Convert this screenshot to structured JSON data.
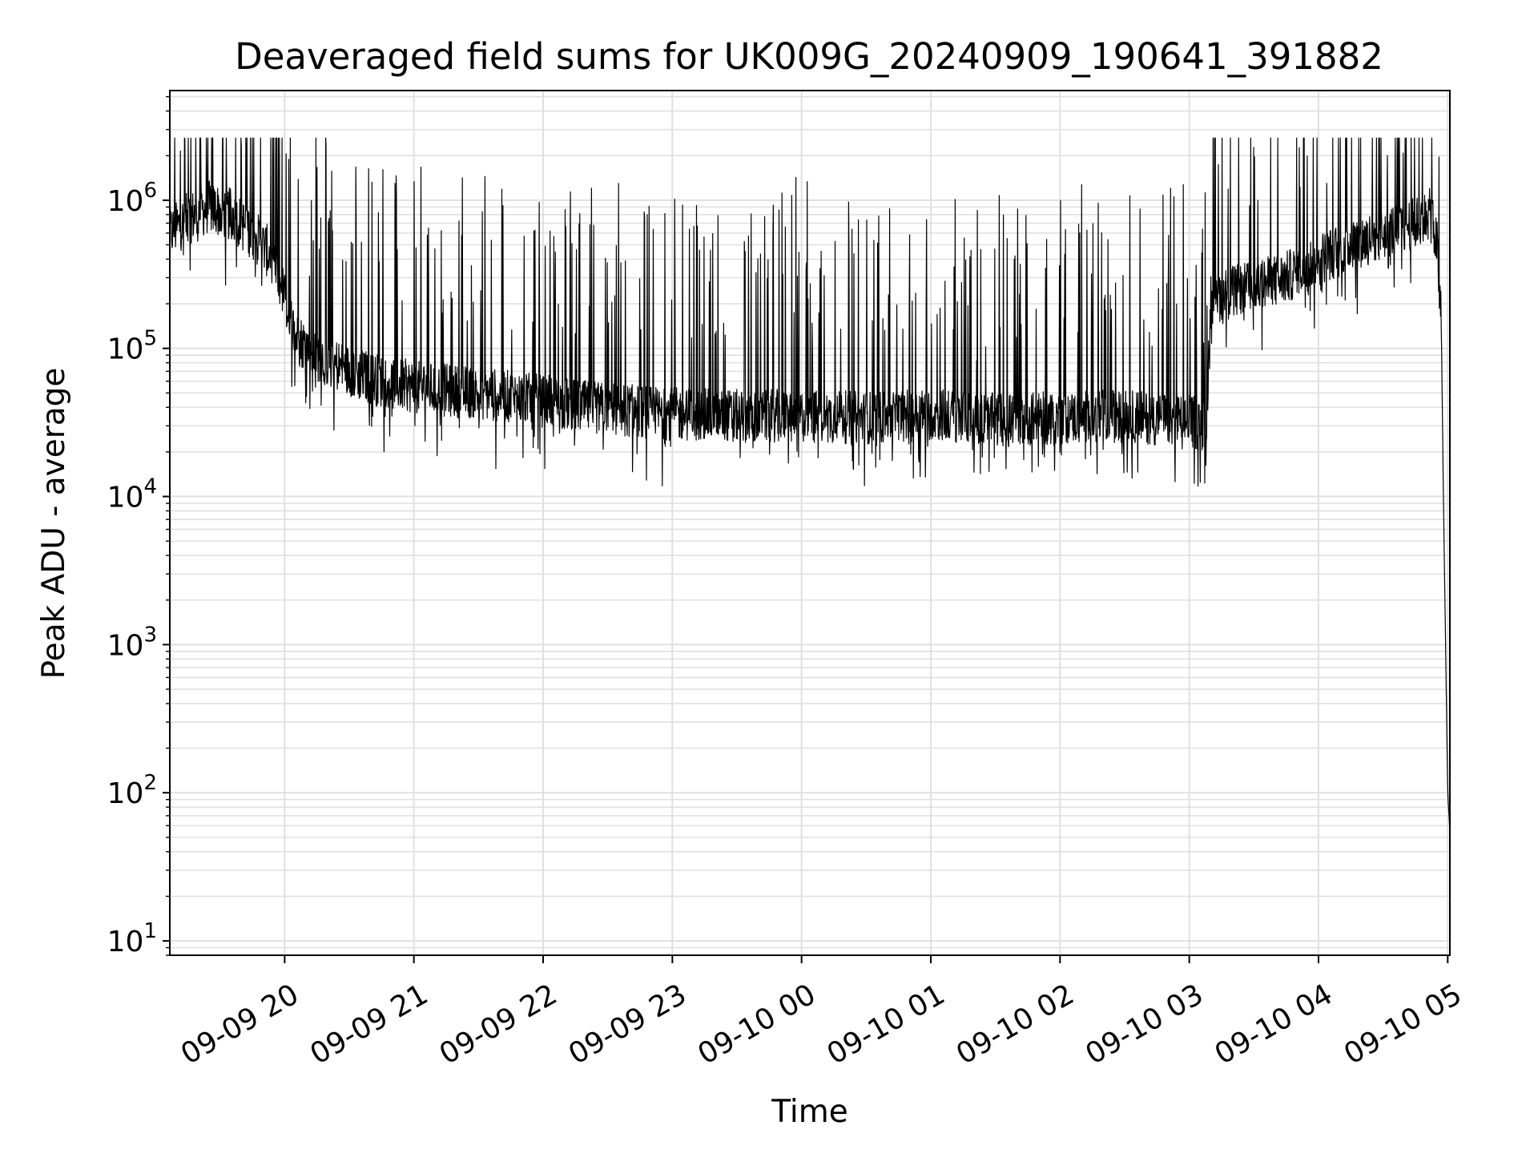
{
  "chart_data": {
    "type": "line",
    "title": "Deaveraged field sums for UK009G_20240909_190641_391882",
    "xlabel": "Time",
    "ylabel": "Peak ADU - average",
    "yscale": "log",
    "ylim": [
      8,
      5500000
    ],
    "xlim": [
      "2024-09-09 19:06:41",
      "2024-09-10 05:01:00"
    ],
    "grid": true,
    "line_color": "#000000",
    "grid_color": "#e0e0e0",
    "x_ticks": [
      {
        "t": "2024-09-09 20:00",
        "label": "09-09 20"
      },
      {
        "t": "2024-09-09 21:00",
        "label": "09-09 21"
      },
      {
        "t": "2024-09-09 22:00",
        "label": "09-09 22"
      },
      {
        "t": "2024-09-09 23:00",
        "label": "09-09 23"
      },
      {
        "t": "2024-09-10 00:00",
        "label": "09-10 00"
      },
      {
        "t": "2024-09-10 01:00",
        "label": "09-10 01"
      },
      {
        "t": "2024-09-10 02:00",
        "label": "09-10 02"
      },
      {
        "t": "2024-09-10 03:00",
        "label": "09-10 03"
      },
      {
        "t": "2024-09-10 04:00",
        "label": "09-10 04"
      },
      {
        "t": "2024-09-10 05:00",
        "label": "09-10 05"
      }
    ],
    "y_ticks": [
      {
        "value": 10,
        "base": "10",
        "exp": "1"
      },
      {
        "value": 100,
        "base": "10",
        "exp": "2"
      },
      {
        "value": 1000,
        "base": "10",
        "exp": "3"
      },
      {
        "value": 10000,
        "base": "10",
        "exp": "4"
      },
      {
        "value": 100000,
        "base": "10",
        "exp": "5"
      },
      {
        "value": 1000000,
        "base": "10",
        "exp": "6"
      }
    ],
    "series": [
      {
        "x": [
          "2024-09-09 19:06:41",
          "2024-09-09 19:15",
          "2024-09-09 19:25",
          "2024-09-09 19:35",
          "2024-09-09 19:45",
          "2024-09-09 19:55",
          "2024-09-09 20:05",
          "2024-09-09 20:15",
          "2024-09-09 20:30",
          "2024-09-09 20:45",
          "2024-09-09 21:00",
          "2024-09-09 21:15",
          "2024-09-09 21:30",
          "2024-09-09 21:45",
          "2024-09-09 22:00",
          "2024-09-09 22:20",
          "2024-09-09 22:40",
          "2024-09-09 23:00",
          "2024-09-09 23:30",
          "2024-09-10 00:00",
          "2024-09-10 00:30",
          "2024-09-10 01:00",
          "2024-09-10 01:30",
          "2024-09-10 02:00",
          "2024-09-10 02:30",
          "2024-09-10 03:00",
          "2024-09-10 03:08",
          "2024-09-10 03:10",
          "2024-09-10 03:30",
          "2024-09-10 03:45",
          "2024-09-10 04:00",
          "2024-09-10 04:15",
          "2024-09-10 04:30",
          "2024-09-10 04:45",
          "2024-09-10 04:52",
          "2024-09-10 04:55",
          "2024-09-10 04:57",
          "2024-09-10 04:58",
          "2024-09-10 04:59",
          "2024-09-10 05:00",
          "2024-09-10 05:01"
        ],
        "values": [
          600000,
          750000,
          900000,
          800000,
          600000,
          400000,
          120000,
          90000,
          70000,
          60000,
          55000,
          52000,
          50000,
          47000,
          44000,
          40000,
          38000,
          36000,
          35000,
          35000,
          34000,
          36000,
          33000,
          34000,
          35000,
          32000,
          30000,
          220000,
          260000,
          300000,
          400000,
          500000,
          600000,
          700000,
          800000,
          500000,
          150000,
          10000,
          1000,
          100,
          55
        ]
      }
    ]
  }
}
